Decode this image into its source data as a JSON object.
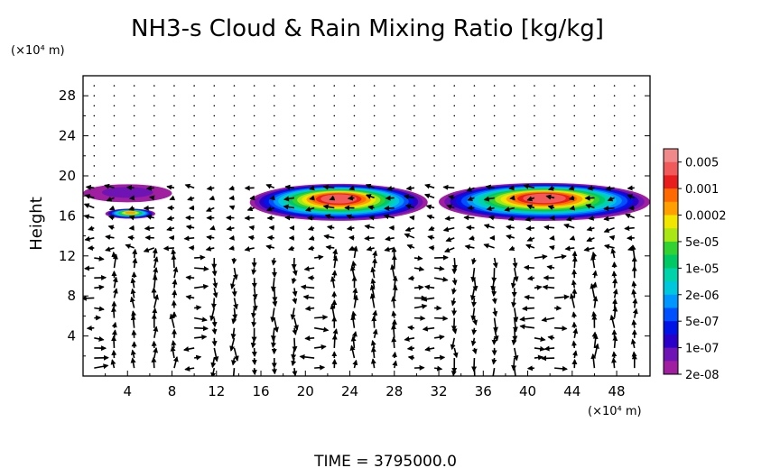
{
  "chart_data": {
    "type": "heatmap",
    "title": "NH3-s Cloud & Rain Mixing Ratio [kg/kg]",
    "ylabel": "Height",
    "xunit": "(×10⁴ m)",
    "yunit": "(×10⁴ m)",
    "footer": "TIME = 3795000.0",
    "xlim": [
      0,
      51
    ],
    "ylim": [
      0,
      30
    ],
    "xticks": [
      "4",
      "8",
      "12",
      "16",
      "20",
      "24",
      "28",
      "32",
      "36",
      "40",
      "44",
      "48"
    ],
    "yticks": [
      "4",
      "8",
      "12",
      "16",
      "20",
      "24",
      "28"
    ],
    "colorbar": {
      "labels": [
        "0.005",
        "0.001",
        "0.0002",
        "5e-05",
        "1e-05",
        "2e-06",
        "5e-07",
        "1e-07",
        "2e-08"
      ],
      "colors": [
        "#f08a8a",
        "#f05a5a",
        "#e81e1e",
        "#ff6a00",
        "#ffa000",
        "#f0e600",
        "#a8e614",
        "#32d232",
        "#00c864",
        "#00d2aa",
        "#00c8dc",
        "#0096ff",
        "#0050ff",
        "#0014e6",
        "#2800c8",
        "#6e14b4",
        "#a01ea0"
      ]
    },
    "cloud_layers": [
      {
        "x0": 0,
        "x1": 8,
        "bottom": 17.5,
        "top": 19.3,
        "peak_level": 1
      },
      {
        "x0": 2,
        "x1": 6.5,
        "bottom": 15.8,
        "top": 16.8,
        "peak_level": 12
      },
      {
        "x0": 15,
        "x1": 31,
        "bottom": 15.8,
        "top": 19.5,
        "peak_level": 15
      },
      {
        "x0": 32,
        "x1": 51,
        "bottom": 15.8,
        "top": 19.6,
        "peak_level": 15
      }
    ]
  }
}
